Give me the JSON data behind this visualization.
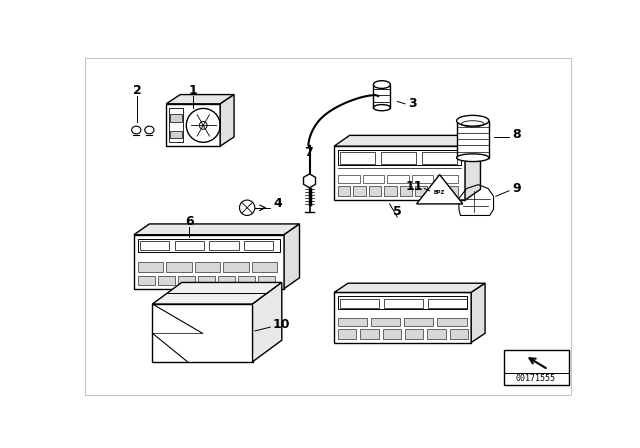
{
  "background_color": "#ffffff",
  "diagram_id": "00171555",
  "fig_width": 6.4,
  "fig_height": 4.48,
  "dpi": 100,
  "line_color": "#000000",
  "label_color": "#000000",
  "border_color": "#cccccc"
}
